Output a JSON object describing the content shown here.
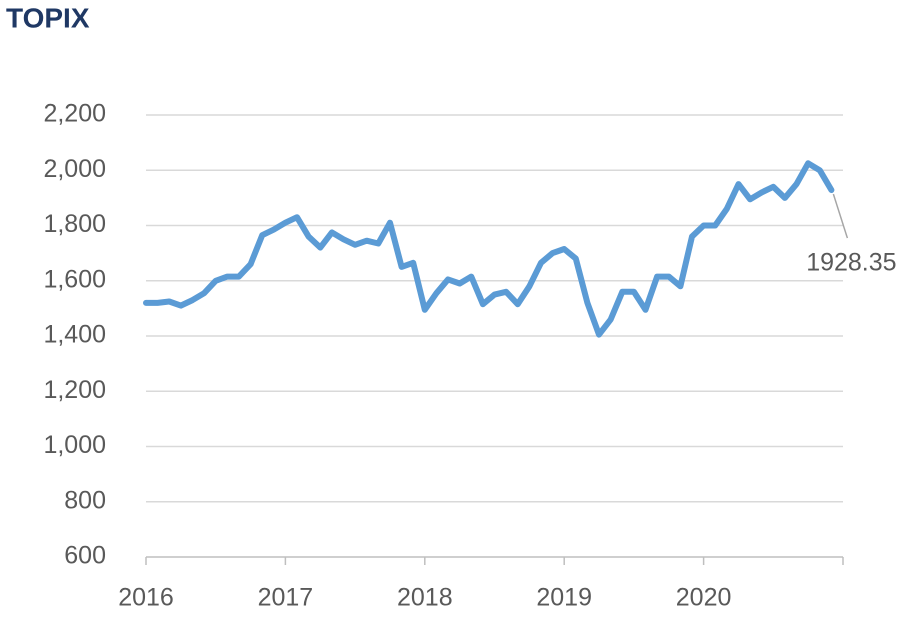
{
  "chart_data": {
    "type": "line",
    "title": "TOPIX",
    "categories": [
      "2016",
      null,
      null,
      null,
      null,
      null,
      null,
      null,
      null,
      null,
      null,
      null,
      "2017",
      null,
      null,
      null,
      null,
      null,
      null,
      null,
      null,
      null,
      null,
      null,
      "2018",
      null,
      null,
      null,
      null,
      null,
      null,
      null,
      null,
      null,
      null,
      null,
      "2019",
      null,
      null,
      null,
      null,
      null,
      null,
      null,
      null,
      null,
      null,
      null,
      "2020",
      null,
      null,
      null,
      null,
      null,
      null,
      null,
      null,
      null,
      null,
      null
    ],
    "values": [
      1520,
      1520,
      1525,
      1510,
      1530,
      1555,
      1600,
      1615,
      1615,
      1660,
      1765,
      1785,
      1810,
      1830,
      1760,
      1720,
      1775,
      1750,
      1730,
      1745,
      1735,
      1810,
      1650,
      1665,
      1495,
      1555,
      1605,
      1590,
      1615,
      1515,
      1550,
      1560,
      1515,
      1580,
      1665,
      1700,
      1715,
      1680,
      1520,
      1405,
      1460,
      1560,
      1560,
      1495,
      1615,
      1615,
      1580,
      1760,
      1800,
      1800,
      1860,
      1950,
      1895,
      1920,
      1940,
      1900,
      1950,
      2025,
      2000,
      1928.35
    ],
    "color": "#5b9bd5",
    "ylim": [
      600,
      2200
    ],
    "yticks": [
      600,
      800,
      {
        "value": 1000,
        "label": "1,000"
      },
      {
        "value": 1200,
        "label": "1,200"
      },
      {
        "value": 1400,
        "label": "1,400"
      },
      {
        "value": 1600,
        "label": "1,600"
      },
      {
        "value": 1800,
        "label": "1,800"
      },
      {
        "value": 2000,
        "label": "2,000"
      },
      {
        "value": 2200,
        "label": "2,200"
      }
    ],
    "grid": true
  }
}
